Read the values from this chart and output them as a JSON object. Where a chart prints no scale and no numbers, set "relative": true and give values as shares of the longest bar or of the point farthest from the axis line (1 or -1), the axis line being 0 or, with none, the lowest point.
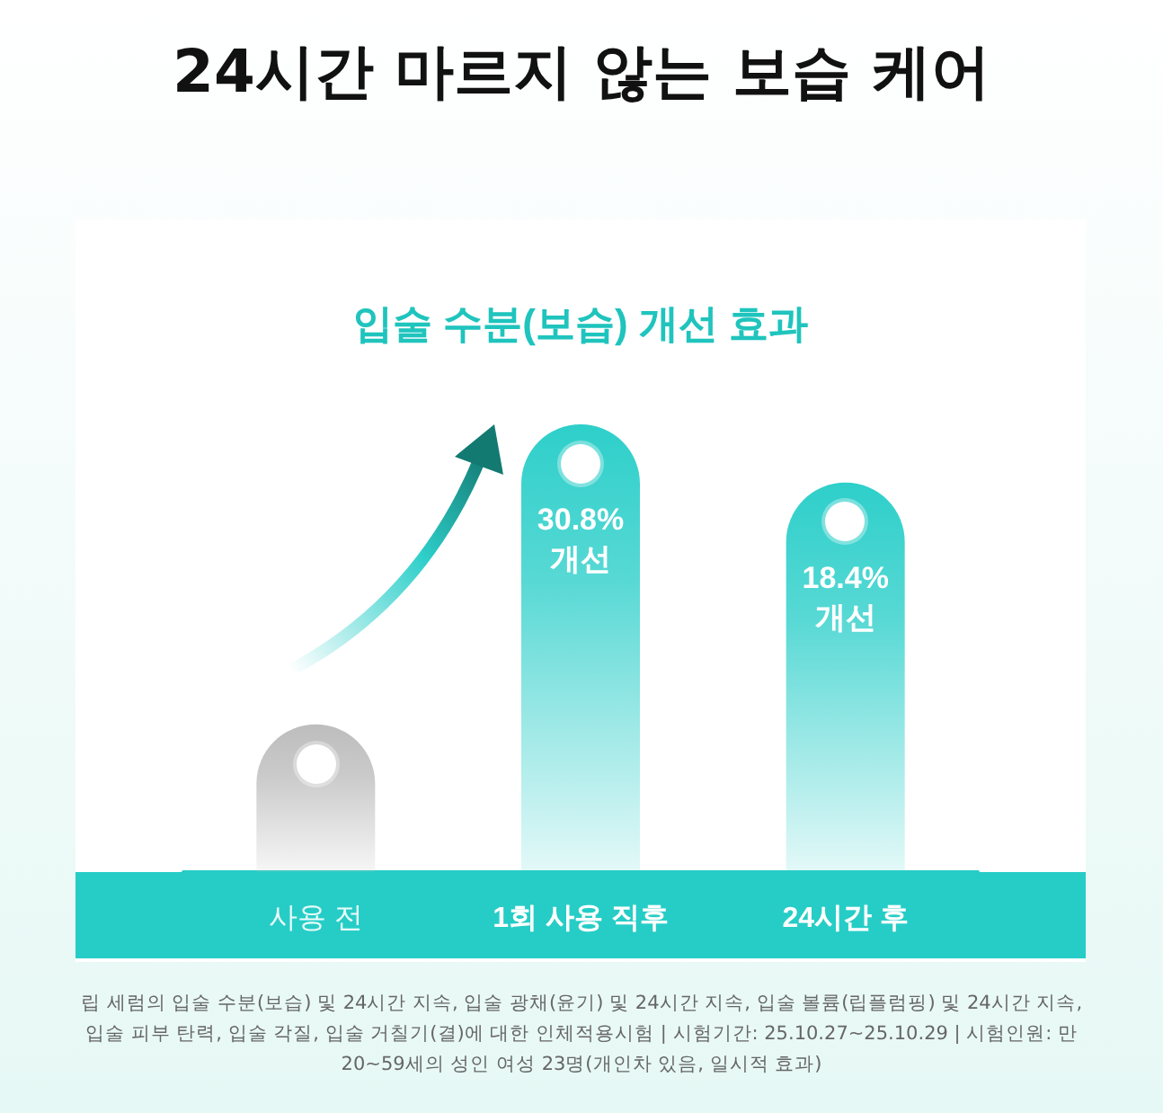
{
  "chart_data": {
    "type": "bar",
    "title": "24시간 마르지 않는 보습 케어",
    "subtitle": "입술 수분(보습) 개선 효과",
    "categories": [
      "사용 전",
      "1회 사용 직후",
      "24시간 후"
    ],
    "values": [
      0.33,
      1,
      0.87
    ],
    "colors": [
      "#bdbdbd",
      "#2ecfca",
      "#2ecfca"
    ],
    "relative": true,
    "annotations": [
      {
        "text": "30.8%\n개선",
        "x": "1회 사용 직후",
        "y": 1
      },
      {
        "text": "18.4%\n개선",
        "x": "24시간 후",
        "y": 0.87
      },
      "립 세럼의 입술 수분(보습) 및 24시간 지속, 입술 광채(윤기) 및 24시간 지속, 입술 볼륨(립플럼핑) 및 24시간 지속, 입술 피부 탄력, 입술 각질, 입술 거칠기(결)에 대한 인체적용시험 | 시험기간: 25.10.27~25.10.29 | 시험인원: 만 20~59세의 성인 여성 23명(개인차 있음, 일시적 효과)"
    ]
  }
}
